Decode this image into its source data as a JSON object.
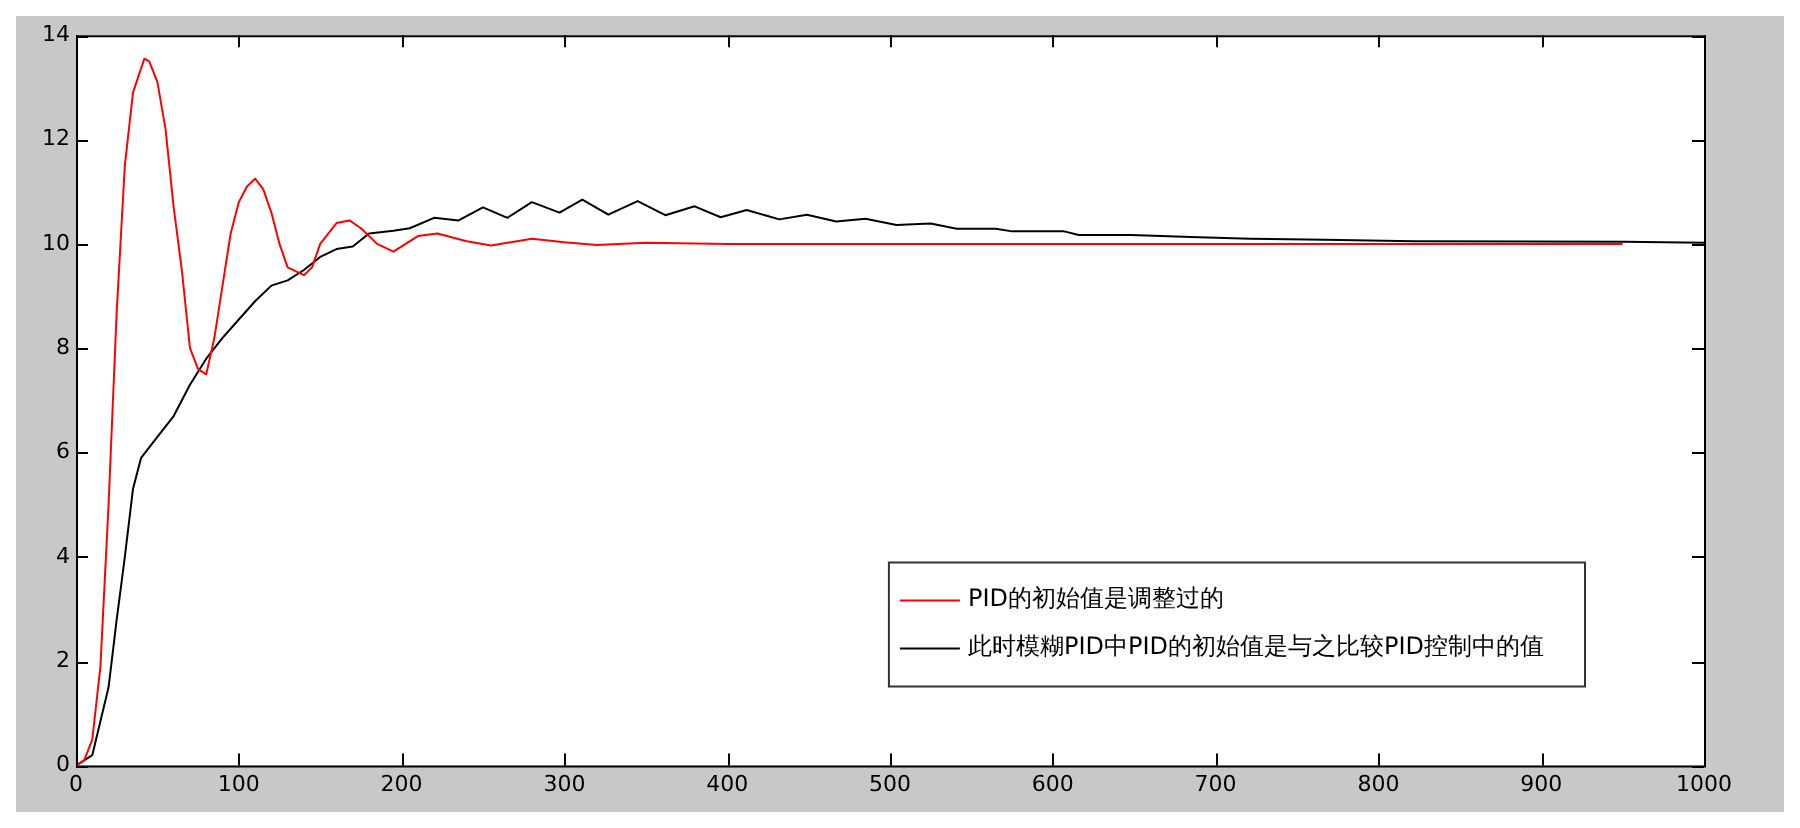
{
  "chart_data": {
    "type": "line",
    "xlim": [
      0,
      1000
    ],
    "ylim": [
      0,
      14
    ],
    "xticks": [
      0,
      100,
      200,
      300,
      400,
      500,
      600,
      700,
      800,
      900,
      1000
    ],
    "yticks": [
      0,
      2,
      4,
      6,
      8,
      10,
      12,
      14
    ],
    "grid": false,
    "legend": "bottom right",
    "marker": "none",
    "line_style": "solid",
    "series": [
      {
        "name": "PID的初始值是调整过的",
        "color": "#ff0000",
        "x": [
          0,
          5,
          10,
          15,
          20,
          25,
          30,
          35,
          42,
          45,
          50,
          55,
          60,
          65,
          70,
          75,
          80,
          85,
          90,
          95,
          100,
          105,
          110,
          115,
          120,
          125,
          130,
          140,
          145,
          150,
          160,
          168,
          175,
          185,
          195,
          210,
          222,
          240,
          255,
          280,
          300,
          320,
          350,
          400,
          500,
          600,
          700,
          800,
          950
        ],
        "values": [
          0,
          0.1,
          0.5,
          1.9,
          5.0,
          8.7,
          11.5,
          12.9,
          13.55,
          13.5,
          13.1,
          12.2,
          10.7,
          9.5,
          8.0,
          7.6,
          7.5,
          8.2,
          9.2,
          10.2,
          10.8,
          11.1,
          11.25,
          11.05,
          10.6,
          10.0,
          9.55,
          9.4,
          9.55,
          10.0,
          10.4,
          10.45,
          10.3,
          10.0,
          9.85,
          10.15,
          10.2,
          10.05,
          9.97,
          10.1,
          10.03,
          9.98,
          10.02,
          10.0,
          10.0,
          10.0,
          10.0,
          10.0,
          10.0
        ]
      },
      {
        "name": "此时模糊PID中PID的初始值是与之比较PID控制中的值",
        "color": "#000000",
        "x": [
          0,
          10,
          20,
          25,
          30,
          35,
          40,
          50,
          60,
          70,
          80,
          90,
          100,
          110,
          120,
          130,
          140,
          150,
          160,
          170,
          180,
          195,
          205,
          220,
          235,
          250,
          265,
          280,
          297,
          311,
          327,
          345,
          362,
          380,
          396,
          412,
          432,
          449,
          467,
          485,
          504,
          525,
          541,
          565,
          575,
          607,
          616,
          648,
          685,
          721,
          767,
          822,
          951,
          1000
        ],
        "values": [
          0,
          0.2,
          1.5,
          2.8,
          4.0,
          5.3,
          5.9,
          6.3,
          6.7,
          7.3,
          7.8,
          8.2,
          8.55,
          8.9,
          9.2,
          9.3,
          9.5,
          9.75,
          9.9,
          9.95,
          10.2,
          10.25,
          10.3,
          10.5,
          10.45,
          10.7,
          10.5,
          10.8,
          10.6,
          10.85,
          10.56,
          10.82,
          10.55,
          10.72,
          10.51,
          10.65,
          10.47,
          10.56,
          10.43,
          10.48,
          10.36,
          10.39,
          10.29,
          10.29,
          10.24,
          10.24,
          10.17,
          10.17,
          10.13,
          10.1,
          10.08,
          10.05,
          10.04,
          10.02
        ]
      }
    ]
  }
}
